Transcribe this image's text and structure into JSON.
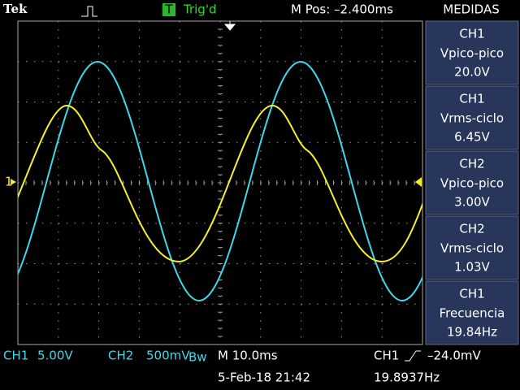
{
  "header": {
    "brand": "Tek",
    "trigger_icon": "T",
    "trigger_status": "Trig'd",
    "position": "M Pos: –2.400ms"
  },
  "channel_marker": "1",
  "measurements": {
    "title": "MEDIDAS",
    "items": [
      {
        "channel": "CH1",
        "label": "Vpico-pico",
        "value": "20.0V"
      },
      {
        "channel": "CH1",
        "label": "Vrms-ciclo",
        "value": "6.45V"
      },
      {
        "channel": "CH2",
        "label": "Vpico-pico",
        "value": "3.00V"
      },
      {
        "channel": "CH2",
        "label": "Vrms-ciclo",
        "value": "1.03V"
      },
      {
        "channel": "CH1",
        "label": "Frecuencia",
        "value": "19.84Hz"
      }
    ]
  },
  "footer": {
    "ch1_channel": "CH1",
    "ch1_scale": "5.00V",
    "ch2_channel": "CH2",
    "ch2_scale": "500mV",
    "ch2_bw": "Bw",
    "timebase": "M 10.0ms",
    "trigger_source": "CH1",
    "trigger_level": "–24.0mV",
    "date": "5-Feb-18 21:42",
    "frequency": "19.8937Hz"
  }
}
